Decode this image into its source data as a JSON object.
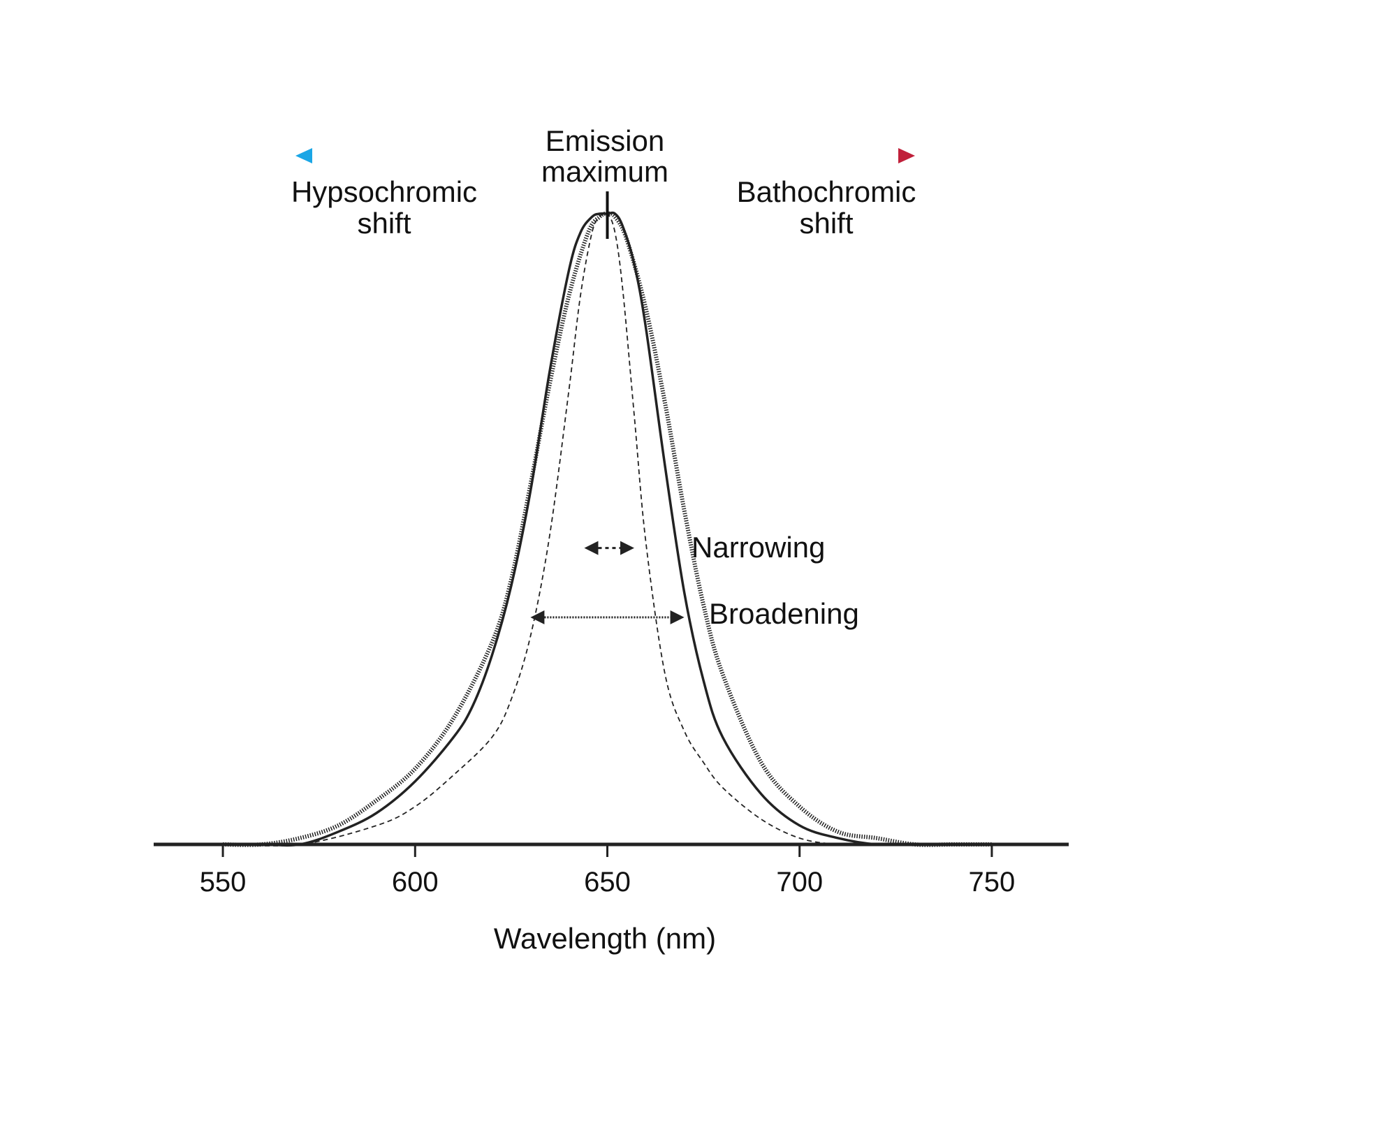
{
  "chart_data": {
    "type": "line",
    "title": "",
    "xlabel": "Wavelength (nm)",
    "ylabel": "",
    "xlim": [
      532,
      770
    ],
    "ylim": [
      0,
      1
    ],
    "x_ticks": [
      550,
      600,
      650,
      700,
      750
    ],
    "x_tick_labels": [
      "550",
      "600",
      "650",
      "700",
      "750"
    ],
    "grid": false,
    "legend": "none",
    "series": [
      {
        "style": "solid",
        "x": [
          550,
          560,
          570,
          580,
          590,
          600,
          610,
          615,
          620,
          625,
          630,
          635,
          640,
          643,
          646,
          648,
          650,
          652,
          654,
          657,
          660,
          665,
          670,
          675,
          680,
          690,
          700,
          710,
          720,
          730,
          740,
          750
        ],
        "y": [
          0.0,
          0.0,
          0.0,
          0.02,
          0.05,
          0.1,
          0.17,
          0.22,
          0.3,
          0.41,
          0.56,
          0.75,
          0.91,
          0.97,
          0.995,
          1.0,
          1.0,
          1.0,
          0.98,
          0.92,
          0.82,
          0.6,
          0.4,
          0.26,
          0.17,
          0.08,
          0.03,
          0.01,
          0.0,
          0.0,
          0.0,
          0.0
        ]
      },
      {
        "style": "dashed",
        "x": [
          550,
          570,
          590,
          600,
          610,
          620,
          625,
          630,
          635,
          640,
          643,
          646,
          648,
          650,
          652,
          654,
          657,
          660,
          665,
          670,
          675,
          680,
          690,
          700,
          710,
          720,
          730,
          750
        ],
        "y": [
          0.0,
          0.0,
          0.03,
          0.06,
          0.11,
          0.17,
          0.23,
          0.33,
          0.49,
          0.72,
          0.87,
          0.97,
          0.995,
          1.0,
          0.97,
          0.88,
          0.68,
          0.48,
          0.27,
          0.18,
          0.13,
          0.09,
          0.04,
          0.01,
          0.0,
          0.0,
          0.0,
          0.0
        ]
      },
      {
        "style": "dotted",
        "x": [
          550,
          560,
          570,
          580,
          590,
          600,
          610,
          620,
          625,
          630,
          635,
          640,
          645,
          648,
          650,
          652,
          655,
          660,
          665,
          670,
          675,
          680,
          690,
          700,
          710,
          720,
          730,
          740,
          750
        ],
        "y": [
          0.0,
          0.0,
          0.01,
          0.03,
          0.07,
          0.12,
          0.2,
          0.32,
          0.42,
          0.57,
          0.73,
          0.87,
          0.97,
          0.995,
          1.0,
          0.995,
          0.96,
          0.85,
          0.7,
          0.53,
          0.38,
          0.27,
          0.13,
          0.06,
          0.02,
          0.01,
          0.0,
          0.0,
          0.0
        ]
      }
    ],
    "annotations": {
      "emission_max": {
        "line1": "Emission",
        "line2": "maximum",
        "x": 650
      },
      "hypsochromic": {
        "line1": "Hypsochromic",
        "line2": "shift",
        "color": "#1aa6e6"
      },
      "bathochromic": {
        "line1": "Bathochromic",
        "line2": "shift",
        "color": "#c0203a"
      },
      "narrowing": {
        "label": "Narrowing",
        "x_from": 644,
        "x_to": 657,
        "y": 0.47
      },
      "broadening": {
        "label": "Broadening",
        "x_from": 630,
        "x_to": 670,
        "y": 0.36
      }
    }
  }
}
